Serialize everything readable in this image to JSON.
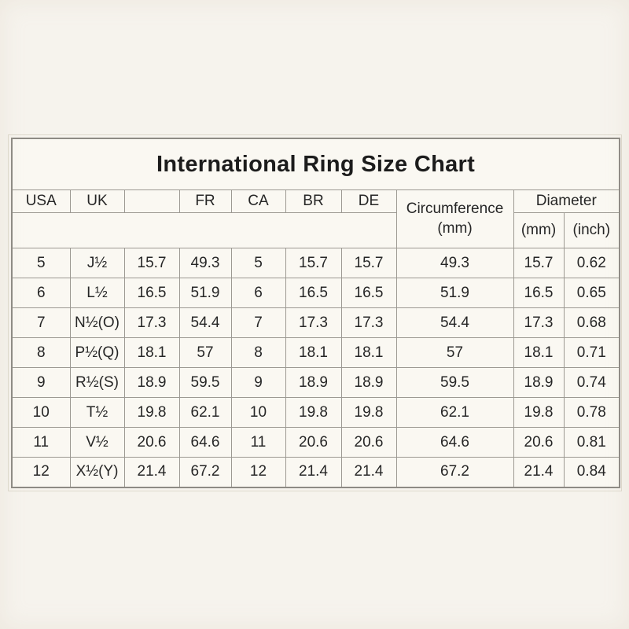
{
  "title": "International Ring Size Chart",
  "colors": {
    "page_background": "#f6f3ed",
    "table_background": "#faf8f2",
    "border": "#9c9992",
    "outer_border": "#8d8a84",
    "text": "#262626"
  },
  "table": {
    "columns": [
      "USA",
      "UK",
      "",
      "FR",
      "CA",
      "BR",
      "DE"
    ],
    "circumference_label": "Circumference",
    "circumference_unit": "(mm)",
    "diameter_label": "Diameter",
    "diameter_sub": [
      "(mm)",
      "(inch)"
    ]
  },
  "chart_data": {
    "type": "table",
    "title": "International Ring Size Chart",
    "columns": [
      "USA",
      "UK",
      "",
      "FR",
      "CA",
      "BR",
      "DE",
      "Circumference (mm)",
      "Diameter (mm)",
      "Diameter (inch)"
    ],
    "rows": [
      [
        "5",
        "J½",
        "15.7",
        "49.3",
        "5",
        "15.7",
        "15.7",
        "49.3",
        "15.7",
        "0.62"
      ],
      [
        "6",
        "L½",
        "16.5",
        "51.9",
        "6",
        "16.5",
        "16.5",
        "51.9",
        "16.5",
        "0.65"
      ],
      [
        "7",
        "N½(O)",
        "17.3",
        "54.4",
        "7",
        "17.3",
        "17.3",
        "54.4",
        "17.3",
        "0.68"
      ],
      [
        "8",
        "P½(Q)",
        "18.1",
        "57",
        "8",
        "18.1",
        "18.1",
        "57",
        "18.1",
        "0.71"
      ],
      [
        "9",
        "R½(S)",
        "18.9",
        "59.5",
        "9",
        "18.9",
        "18.9",
        "59.5",
        "18.9",
        "0.74"
      ],
      [
        "10",
        "T½",
        "19.8",
        "62.1",
        "10",
        "19.8",
        "19.8",
        "62.1",
        "19.8",
        "0.78"
      ],
      [
        "11",
        "V½",
        "20.6",
        "64.6",
        "11",
        "20.6",
        "20.6",
        "64.6",
        "20.6",
        "0.81"
      ],
      [
        "12",
        "X½(Y)",
        "21.4",
        "67.2",
        "12",
        "21.4",
        "21.4",
        "67.2",
        "21.4",
        "0.84"
      ]
    ]
  }
}
